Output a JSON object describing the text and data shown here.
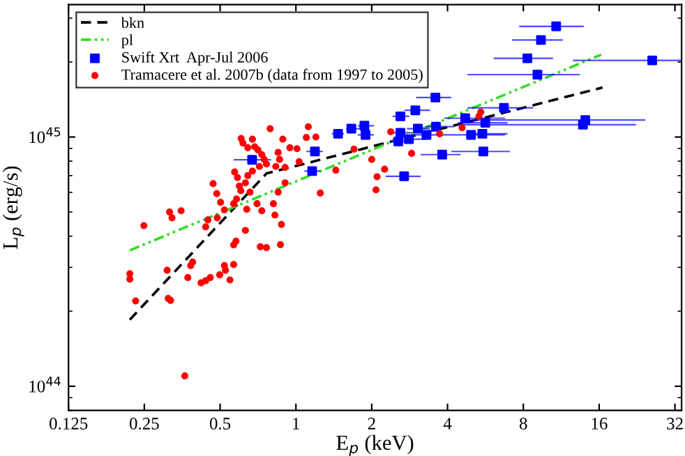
{
  "chart_data": {
    "type": "scatter",
    "xlabel": "E$_{p}$ (keV)",
    "ylabel": "L$_{p}$ (erg/s)",
    "log": "xy",
    "xlim": [
      0.125,
      34
    ],
    "ylim": [
      8e+43,
      3.4e+45
    ],
    "xticks": [
      0.125,
      0.25,
      0.5,
      1,
      2,
      4,
      8,
      16,
      32
    ],
    "yticks": [
      {
        "value": 1e+44,
        "label": "10$^{44}$"
      },
      {
        "value": 1e+45,
        "label": "10$^{45}$"
      }
    ],
    "grid": false,
    "legend": "top left",
    "series": [
      {
        "name": "bkn",
        "type": "line",
        "color": "#000000",
        "line_style": "dashed",
        "marker": "none",
        "x": [
          0.219,
          0.764,
          16.5
        ],
        "values": [
          1.85e+44,
          7.14e+44,
          1.58e+45
        ]
      },
      {
        "name": "pl",
        "type": "line",
        "color": "#33dd22",
        "line_style": "dashdot",
        "marker": "none",
        "x": [
          0.219,
          16.3
        ],
        "values": [
          3.51e+44,
          2.14e+45
        ]
      },
      {
        "name": "Swift Xrt  Apr-Jul 2006",
        "color": "#0000ff",
        "marker": "square",
        "x": [
          10.8,
          9.4,
          8.3,
          9.1,
          26,
          3.58,
          6.7,
          2.98,
          2.6,
          4.7,
          14.1,
          13.8,
          5.65,
          1.87,
          1.66,
          1.47,
          1.89,
          3.6,
          3.05,
          2.6,
          3.3,
          5.28,
          5.5,
          4.96,
          2.81,
          2.55,
          1.19,
          5.55,
          3.81,
          0.67,
          1.16,
          2.69
        ],
        "values": [
          2.78e+45,
          2.45e+45,
          2.07e+45,
          1.78e+45,
          2.03e+45,
          1.44e+45,
          1.31e+45,
          1.28e+45,
          1.21e+45,
          1.19e+45,
          1.17e+45,
          1.12e+45,
          1.14e+45,
          1.11e+45,
          1.08e+45,
          1.03e+45,
          1.02e+45,
          1.1e+45,
          1.08e+45,
          1.04e+45,
          1.02e+45,
          null,
          1.03e+45,
          1.02e+45,
          9.8e+44,
          9.6e+44,
          8.75e+44,
          8.75e+44,
          8.5e+44,
          8.1e+44,
          7.3e+44,
          6.96e+44
        ],
        "xerrors": [
          [
            7.7,
            13.9
          ],
          [
            7.2,
            11.5
          ],
          [
            6.1,
            10.5
          ],
          [
            4.8,
            13.4
          ],
          [
            12.6,
            34
          ],
          [
            3.0,
            4.14
          ],
          [
            4.8,
            8.75
          ],
          [
            2.7,
            3.41
          ],
          [
            2.42,
            2.82
          ],
          [
            3.88,
            6.77
          ],
          [
            4.8,
            24.4
          ],
          [
            4.41,
            22.4
          ],
          [
            4.41,
            6.92
          ],
          [
            1.76,
            2.04
          ],
          [
            1.58,
            1.8
          ],
          [
            1.39,
            1.55
          ],
          [
            1.76,
            2.04
          ],
          [
            3.27,
            4.23
          ],
          [
            2.76,
            3.41
          ],
          [
            2.37,
            2.88
          ],
          [
            2.88,
            3.72
          ],
          null,
          [
            4.8,
            6.92
          ],
          [
            3.72,
            6.77
          ],
          [
            2.42,
            3.27
          ],
          [
            2.37,
            2.76
          ],
          [
            1.1,
            1.28
          ],
          [
            4.14,
            7.07
          ],
          [
            3.13,
            4.51
          ],
          [
            0.566,
            0.797
          ],
          [
            1.08,
            1.25
          ],
          [
            2.27,
            3.13
          ]
        ]
      },
      {
        "name": "Tramacere et al. 2007b (data from 1997 to 2005)",
        "color": "#ff0000",
        "marker": "circle",
        "x": [
          0.315,
          0.322,
          0.35,
          0.469,
          0.485,
          0.502,
          0.52,
          0.571,
          0.586,
          0.596,
          0.604,
          0.581,
          0.566,
          0.606,
          0.616,
          0.644,
          0.672,
          0.686,
          0.707,
          0.732,
          0.748,
          0.764,
          0.716,
          0.672,
          0.644,
          0.63,
          0.657,
          0.701,
          0.732,
          0.79,
          0.85,
          0.887,
          0.861,
          0.832,
          0.906,
          0.946,
          1.01,
          0.906,
          0.85,
          0.814,
          1.12,
          1.1,
          1.2,
          1.03,
          1.25,
          1.44,
          1.7,
          2.0,
          2.1,
          2.08,
          2.25,
          2.38,
          2.88,
          3.72,
          4.57,
          5.33,
          5.42,
          0.219,
          0.219,
          0.231,
          0.249,
          0.308,
          0.311,
          0.318,
          0.372,
          0.382,
          0.389,
          0.42,
          0.438,
          0.447,
          0.487,
          0.457,
          0.498,
          0.52,
          0.525,
          0.547,
          0.566,
          0.566,
          0.578,
          0.63,
          0.638,
          0.722,
          0.764,
          0.825,
          0.868,
          0.876,
          0.362,
          0.438
        ],
        "values": [
          5e+44,
          4.74e+44,
          5.06e+44,
          6.5e+44,
          5.93e+44,
          5.47e+44,
          5.1e+44,
          7.24e+44,
          6.88e+44,
          6.36e+44,
          6.09e+44,
          5.64e+44,
          5.4e+44,
          9.87e+44,
          9.46e+44,
          9.06e+44,
          9.8e+44,
          9.14e+44,
          8.87e+44,
          8.5e+44,
          8.13e+44,
          7.79e+44,
          7.62e+44,
          7.3e+44,
          7e+44,
          6.55e+44,
          6.01e+44,
          5.4e+44,
          5.06e+44,
          1.08e+45,
          8.67e+44,
          9.8e+44,
          8.13e+44,
          7.62e+44,
          7.55e+44,
          9.06e+44,
          8.98e+44,
          6.55e+44,
          6.01e+44,
          5.4e+44,
          1.1e+45,
          9.96e+44,
          1e+45,
          7.96e+44,
          5.96e+44,
          7.36e+44,
          8.94e+44,
          8.13e+44,
          6.93e+44,
          6.14e+44,
          7.43e+44,
          1.05e+45,
          8.6e+44,
          1.03e+45,
          1.09e+45,
          1.21e+45,
          1.26e+45,
          2.83e+44,
          2.69e+44,
          2.2e+44,
          4.41e+44,
          2.92e+44,
          2.25e+44,
          2.21e+44,
          2.73e+44,
          3.05e+44,
          3.15e+44,
          2.6e+44,
          4.36e+44,
          4.65e+44,
          4.74e+44,
          2.73e+44,
          2.8e+44,
          3.05e+44,
          2.92e+44,
          2.67e+44,
          3.08e+44,
          3.69e+44,
          3.82e+44,
          4.22e+44,
          5.13e+44,
          3.63e+44,
          3.6e+44,
          4.86e+44,
          3.7e+44,
          4.46e+44,
          1.1e+44,
          2.65e+44
        ]
      }
    ]
  }
}
